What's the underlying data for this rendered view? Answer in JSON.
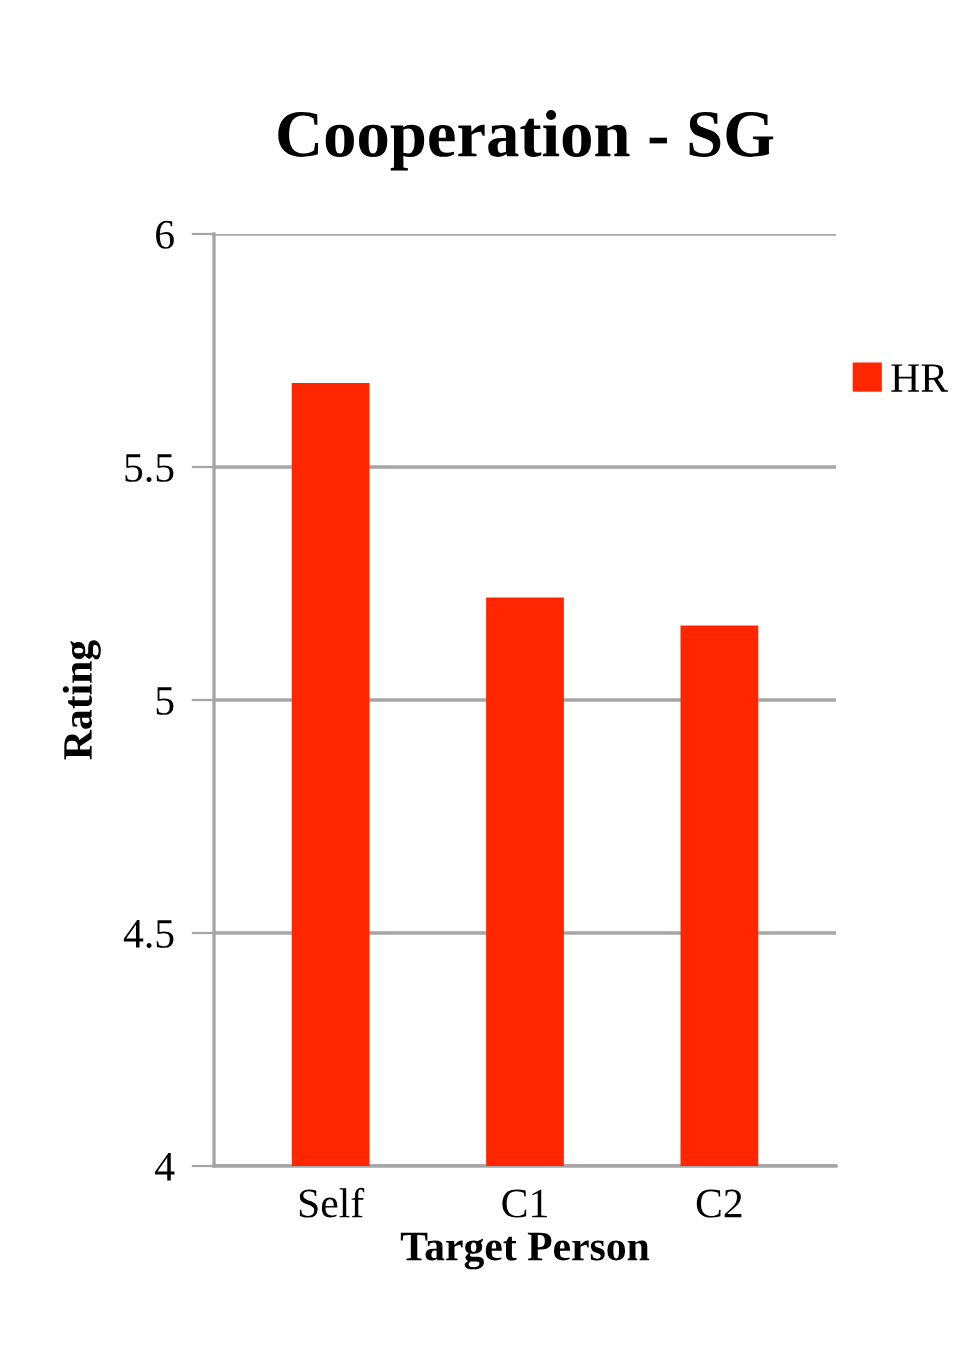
{
  "chart_data": {
    "type": "bar",
    "title": "Cooperation - SG",
    "xlabel": "Target Person",
    "ylabel": "Rating",
    "categories": [
      "Self",
      "C1",
      "C2"
    ],
    "series": [
      {
        "name": "HR",
        "color": "#ff2600",
        "values": [
          5.68,
          5.22,
          5.16
        ]
      }
    ],
    "ylim": [
      4,
      6
    ],
    "yticks": [
      4,
      4.5,
      5,
      5.5,
      6
    ],
    "grid": "y",
    "legend": "right"
  }
}
